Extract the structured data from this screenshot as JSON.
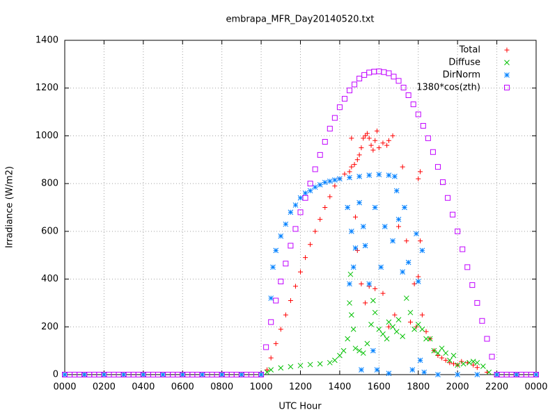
{
  "chart_data": {
    "type": "scatter",
    "title": "embrapa_MFR_Day20140520.txt",
    "x_label": "UTC Hour",
    "y_label": "Irradiance (W/m2)",
    "xlim": [
      0,
      24
    ],
    "ylim": [
      0,
      1400
    ],
    "xticks": [
      {
        "value": 0,
        "label": "0000"
      },
      {
        "value": 2,
        "label": "0200"
      },
      {
        "value": 4,
        "label": "0400"
      },
      {
        "value": 6,
        "label": "0600"
      },
      {
        "value": 8,
        "label": "0800"
      },
      {
        "value": 10,
        "label": "1000"
      },
      {
        "value": 12,
        "label": "1200"
      },
      {
        "value": 14,
        "label": "1400"
      },
      {
        "value": 16,
        "label": "1600"
      },
      {
        "value": 18,
        "label": "1800"
      },
      {
        "value": 20,
        "label": "2000"
      },
      {
        "value": 22,
        "label": "2200"
      },
      {
        "value": 24,
        "label": "0000"
      }
    ],
    "yticks": [
      0,
      200,
      400,
      600,
      800,
      1000,
      1200,
      1400
    ],
    "grid": true,
    "legend": "top-right",
    "series": [
      {
        "name": "Total",
        "color": "#ff0000",
        "marker": "plus",
        "x": [
          0,
          1,
          2,
          3,
          4,
          5,
          6,
          7,
          8,
          9,
          10,
          10.3,
          10.5,
          10.75,
          11,
          11.25,
          11.5,
          11.75,
          12,
          12.25,
          12.5,
          12.75,
          13,
          13.25,
          13.5,
          13.75,
          14,
          14.25,
          14.5,
          14.6,
          14.6,
          14.75,
          14.8,
          14.9,
          14.9,
          15,
          15.1,
          15.1,
          15.2,
          15.3,
          15.3,
          15.4,
          15.5,
          15.5,
          15.6,
          15.7,
          15.8,
          15.8,
          15.9,
          16,
          16.2,
          16.2,
          16.4,
          16.5,
          16.5,
          16.7,
          16.8,
          17,
          17.2,
          17.4,
          17.6,
          17.8,
          17.9,
          18,
          18,
          18.1,
          18.1,
          18.2,
          18.4,
          18.6,
          18.8,
          19,
          19.2,
          19.4,
          19.6,
          19.8,
          20,
          20.2,
          20.5,
          20.8,
          21,
          21.5,
          22,
          23,
          24
        ],
        "values": [
          0,
          0,
          0,
          0,
          0,
          0,
          0,
          0,
          0,
          0,
          0,
          20,
          70,
          130,
          190,
          250,
          310,
          370,
          430,
          490,
          545,
          600,
          650,
          700,
          745,
          790,
          820,
          840,
          850,
          870,
          990,
          880,
          660,
          900,
          520,
          920,
          950,
          380,
          990,
          1000,
          300,
          1010,
          990,
          370,
          960,
          940,
          980,
          360,
          1020,
          950,
          970,
          340,
          960,
          980,
          200,
          1000,
          250,
          620,
          870,
          560,
          220,
          380,
          200,
          820,
          410,
          850,
          560,
          250,
          180,
          150,
          100,
          80,
          70,
          60,
          50,
          45,
          40,
          55,
          50,
          40,
          30,
          10,
          0,
          0,
          0
        ]
      },
      {
        "name": "Diffuse",
        "color": "#00c000",
        "marker": "cross",
        "x": [
          0,
          1,
          2,
          3,
          4,
          5,
          6,
          7,
          8,
          9,
          10,
          10.3,
          10.5,
          11,
          11.5,
          12,
          12.5,
          13,
          13.5,
          13.75,
          14,
          14.2,
          14.4,
          14.5,
          14.55,
          14.6,
          14.7,
          14.8,
          15,
          15.2,
          15.4,
          15.6,
          15.7,
          15.8,
          16,
          16.2,
          16.4,
          16.5,
          16.7,
          16.9,
          17,
          17.2,
          17.4,
          17.6,
          17.8,
          18,
          18.2,
          18.4,
          18.6,
          18.8,
          19,
          19.2,
          19.4,
          19.6,
          19.8,
          20,
          20.3,
          20.6,
          20.8,
          21,
          21.3,
          21.6,
          22,
          23,
          24
        ],
        "values": [
          0,
          0,
          0,
          0,
          0,
          0,
          0,
          0,
          0,
          0,
          0,
          10,
          20,
          28,
          33,
          38,
          42,
          45,
          50,
          60,
          80,
          100,
          150,
          300,
          420,
          250,
          190,
          110,
          100,
          90,
          130,
          210,
          310,
          260,
          190,
          170,
          150,
          220,
          200,
          180,
          230,
          160,
          320,
          260,
          190,
          210,
          190,
          150,
          150,
          100,
          90,
          110,
          90,
          60,
          80,
          40,
          45,
          50,
          55,
          50,
          35,
          10,
          0,
          0,
          0
        ]
      },
      {
        "name": "DirNorm",
        "color": "#0080ff",
        "marker": "star",
        "x": [
          0,
          1,
          2,
          3,
          4,
          5,
          6,
          7,
          8,
          9,
          10,
          10.5,
          10.6,
          10.75,
          11,
          11.25,
          11.5,
          11.75,
          12,
          12.25,
          12.5,
          12.75,
          13,
          13.25,
          13.5,
          13.75,
          14,
          14.4,
          14.5,
          14.5,
          14.6,
          14.7,
          14.8,
          15,
          15,
          15.1,
          15.2,
          15.3,
          15.5,
          15.5,
          15.7,
          15.8,
          15.9,
          16,
          16.1,
          16.3,
          16.5,
          16.5,
          16.7,
          16.8,
          16.9,
          17,
          17.2,
          17.3,
          17.5,
          17.7,
          17.9,
          18,
          18.1,
          18.2,
          18.3,
          19,
          20,
          21,
          22,
          23,
          24
        ],
        "values": [
          0,
          0,
          0,
          0,
          0,
          0,
          0,
          0,
          0,
          0,
          0,
          320,
          450,
          520,
          580,
          630,
          680,
          710,
          740,
          760,
          770,
          785,
          795,
          805,
          810,
          815,
          820,
          700,
          825,
          380,
          600,
          450,
          530,
          830,
          720,
          20,
          620,
          540,
          835,
          380,
          100,
          700,
          20,
          838,
          450,
          620,
          835,
          5,
          560,
          830,
          770,
          650,
          430,
          700,
          470,
          20,
          590,
          390,
          60,
          520,
          10,
          0,
          0,
          0,
          0,
          0,
          0
        ]
      },
      {
        "name": "1380*cos(zth)",
        "color": "#c000ff",
        "marker": "square",
        "x": [
          0,
          0.25,
          0.5,
          0.75,
          1,
          1.25,
          1.5,
          1.75,
          2,
          2.25,
          2.5,
          2.75,
          3,
          3.25,
          3.5,
          3.75,
          4,
          4.25,
          4.5,
          4.75,
          5,
          5.25,
          5.5,
          5.75,
          6,
          6.25,
          6.5,
          6.75,
          7,
          7.25,
          7.5,
          7.75,
          8,
          8.25,
          8.5,
          8.75,
          9,
          9.25,
          9.5,
          9.75,
          10,
          10.25,
          10.5,
          10.75,
          11,
          11.25,
          11.5,
          11.75,
          12,
          12.25,
          12.5,
          12.75,
          13,
          13.25,
          13.5,
          13.75,
          14,
          14.25,
          14.5,
          14.75,
          15,
          15.25,
          15.5,
          15.75,
          16,
          16.25,
          16.5,
          16.75,
          17,
          17.25,
          17.5,
          17.75,
          18,
          18.25,
          18.5,
          18.75,
          19,
          19.25,
          19.5,
          19.75,
          20,
          20.25,
          20.5,
          20.75,
          21,
          21.25,
          21.5,
          21.75,
          22,
          22.25,
          22.5,
          22.75,
          23,
          23.25,
          23.5,
          23.75,
          24
        ],
        "values": [
          0,
          0,
          0,
          0,
          0,
          0,
          0,
          0,
          0,
          0,
          0,
          0,
          0,
          0,
          0,
          0,
          0,
          0,
          0,
          0,
          0,
          0,
          0,
          0,
          0,
          0,
          0,
          0,
          0,
          0,
          0,
          0,
          0,
          0,
          0,
          0,
          0,
          0,
          0,
          0,
          0,
          115,
          220,
          310,
          390,
          465,
          540,
          610,
          680,
          740,
          800,
          860,
          920,
          975,
          1030,
          1075,
          1120,
          1155,
          1190,
          1215,
          1240,
          1255,
          1265,
          1269,
          1270,
          1267,
          1262,
          1248,
          1230,
          1202,
          1170,
          1132,
          1090,
          1042,
          990,
          932,
          870,
          806,
          740,
          670,
          600,
          525,
          450,
          375,
          300,
          225,
          150,
          75,
          0,
          0,
          0,
          0,
          0,
          0,
          0,
          0,
          0
        ]
      }
    ]
  }
}
